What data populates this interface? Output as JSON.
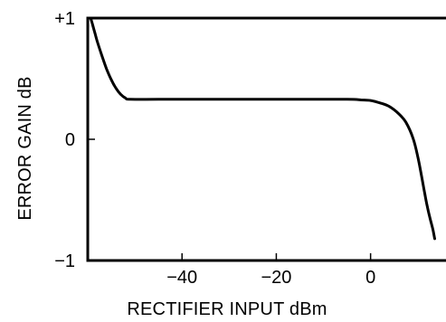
{
  "chart_data": {
    "type": "line",
    "title": "",
    "xlabel": "RECTIFIER INPUT dBm",
    "ylabel": "ERROR GAIN dB",
    "xlim": [
      -60,
      16
    ],
    "ylim": [
      -1,
      1
    ],
    "x_ticks": [
      -40,
      -20,
      0
    ],
    "x_tick_labels": [
      "−40",
      "−20",
      "0"
    ],
    "y_ticks": [
      1,
      0,
      -1
    ],
    "y_tick_labels": [
      "+1",
      "0",
      "−1"
    ],
    "grid": false,
    "legend": "none",
    "series": [
      {
        "color": "#000000",
        "x": [
          -59.3,
          -59.0,
          -58.5,
          -58.0,
          -57.0,
          -56.0,
          -55.0,
          -54.0,
          -53.0,
          -52.0,
          -51.0,
          -45.0,
          -35.0,
          -25.0,
          -15.0,
          -5.0,
          -2.0,
          0.0,
          2.0,
          4.0,
          6.0,
          7.5,
          9.0,
          10.0,
          10.8,
          11.5,
          12.0,
          12.6,
          13.2,
          13.6
        ],
        "y": [
          0.99,
          0.95,
          0.88,
          0.81,
          0.69,
          0.58,
          0.49,
          0.42,
          0.37,
          0.34,
          0.33,
          0.33,
          0.33,
          0.33,
          0.33,
          0.33,
          0.325,
          0.32,
          0.3,
          0.27,
          0.21,
          0.14,
          0.01,
          -0.14,
          -0.3,
          -0.45,
          -0.55,
          -0.65,
          -0.74,
          -0.82
        ]
      }
    ]
  }
}
